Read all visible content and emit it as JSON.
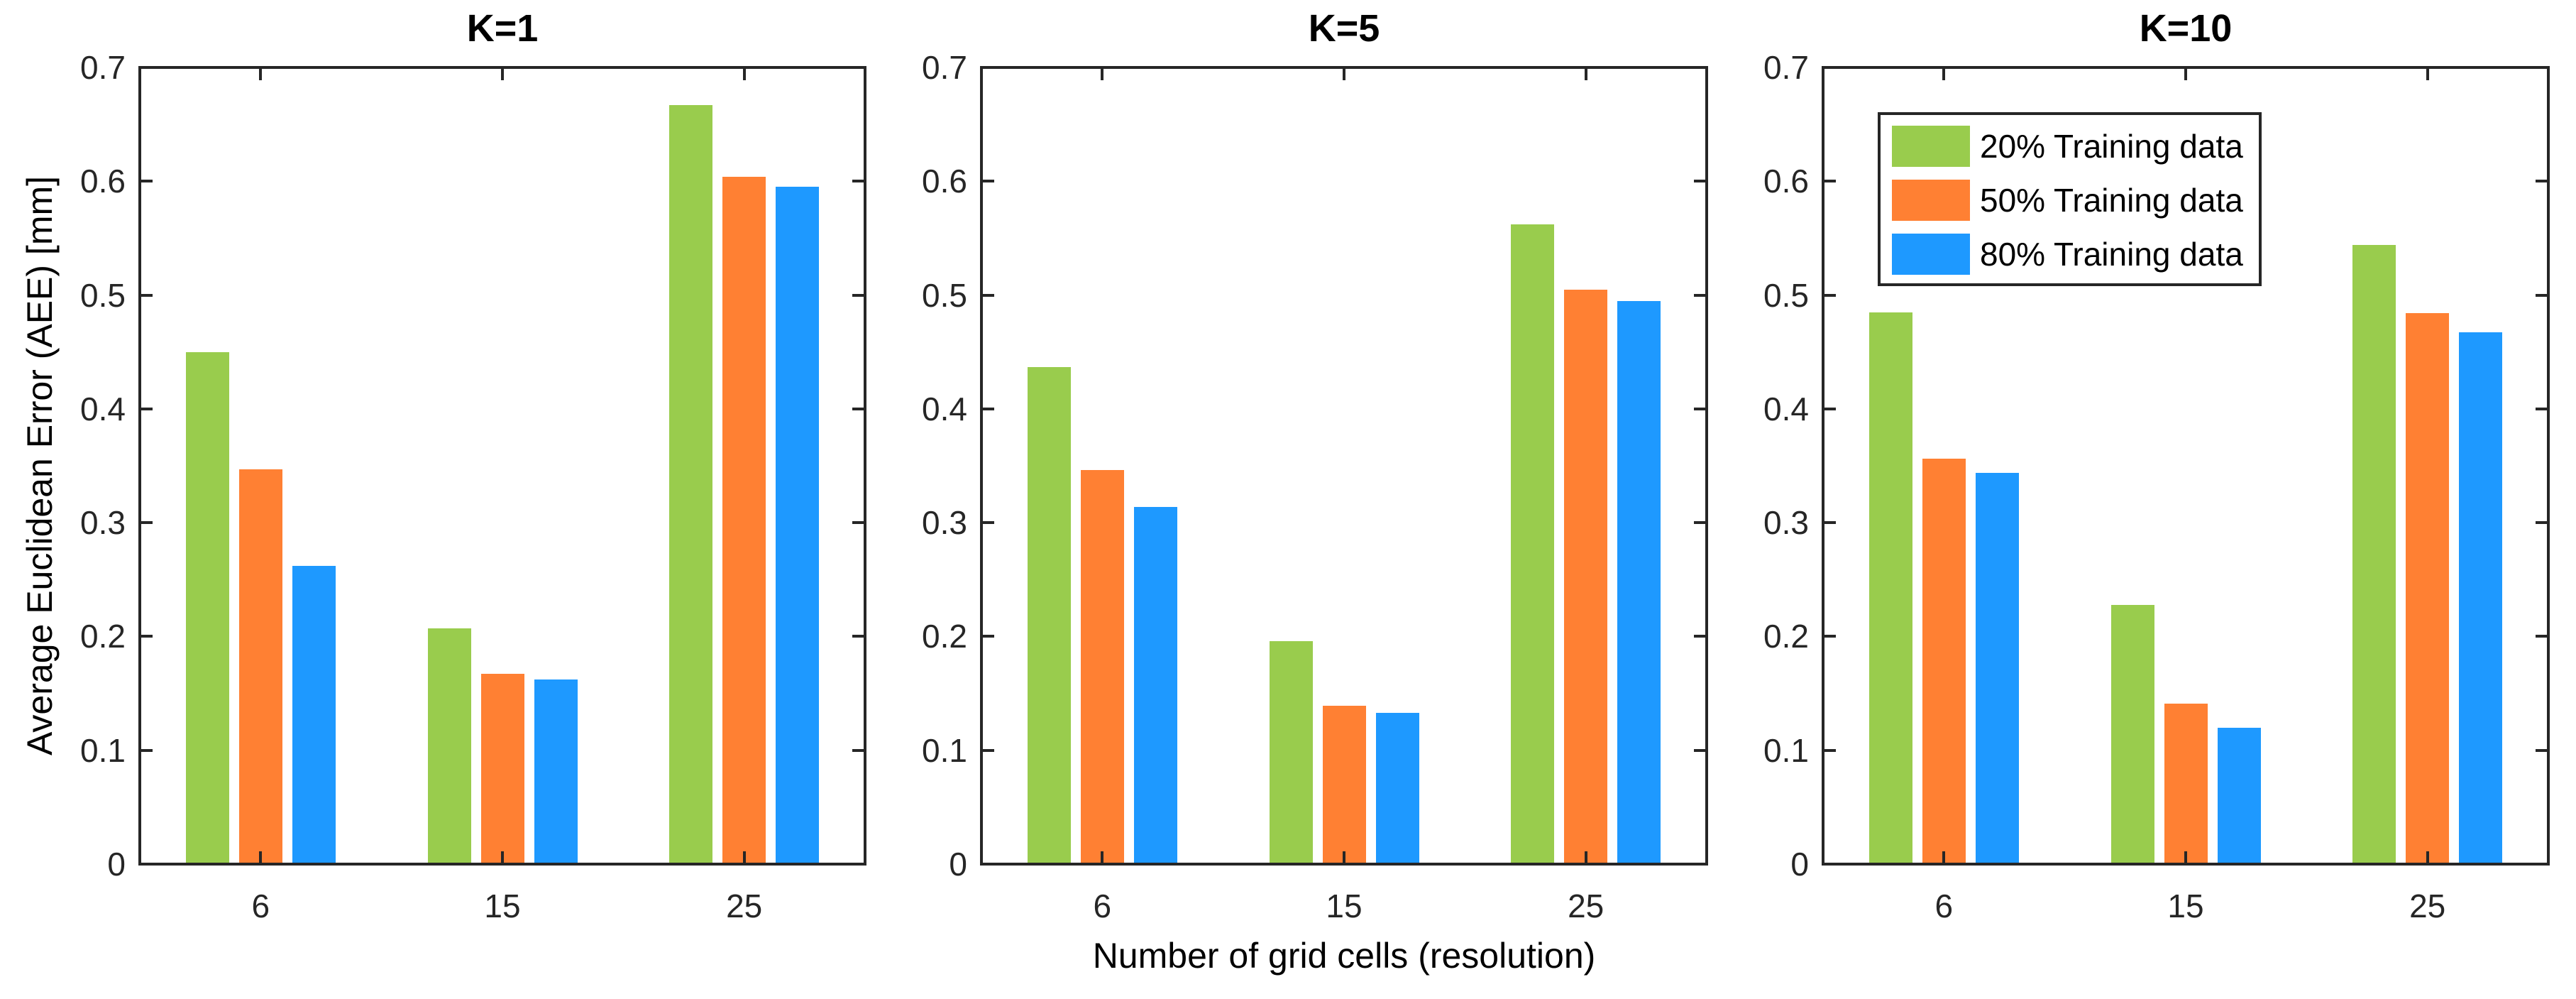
{
  "figure": {
    "background": "#FFFFFF",
    "axis_color": "#262626",
    "text_color": "#000000"
  },
  "chart_data": {
    "type": "bar",
    "layout": "three horizontal subplots sharing y-range, legend in upper-left of third subplot, no grid",
    "categories": [
      "6",
      "15",
      "25"
    ],
    "xlabel": "Number of grid cells (resolution)",
    "ylabel": "Average Euclidean Error (AEE) [mm]",
    "ylim": [
      0,
      0.7
    ],
    "ytick_labels": [
      "0",
      "0.1",
      "0.2",
      "0.3",
      "0.4",
      "0.5",
      "0.6",
      "0.7"
    ],
    "grid": false,
    "subplots": [
      {
        "title": "K=1",
        "series": [
          {
            "name": "20% Training data",
            "color": "#99CC4D",
            "values": [
              0.45,
              0.207,
              0.667
            ]
          },
          {
            "name": "50% Training data",
            "color": "#FF8033",
            "values": [
              0.347,
              0.167,
              0.604
            ]
          },
          {
            "name": "80% Training data",
            "color": "#1E99FF",
            "values": [
              0.262,
              0.162,
              0.595
            ]
          }
        ]
      },
      {
        "title": "K=5",
        "series": [
          {
            "name": "20% Training data",
            "color": "#99CC4D",
            "values": [
              0.437,
              0.196,
              0.562
            ]
          },
          {
            "name": "50% Training data",
            "color": "#FF8033",
            "values": [
              0.346,
              0.139,
              0.505
            ]
          },
          {
            "name": "80% Training data",
            "color": "#1E99FF",
            "values": [
              0.314,
              0.133,
              0.495
            ]
          }
        ]
      },
      {
        "title": "K=10",
        "series": [
          {
            "name": "20% Training data",
            "color": "#99CC4D",
            "values": [
              0.485,
              0.228,
              0.544
            ]
          },
          {
            "name": "50% Training data",
            "color": "#FF8033",
            "values": [
              0.356,
              0.141,
              0.484
            ]
          },
          {
            "name": "80% Training data",
            "color": "#1E99FF",
            "values": [
              0.344,
              0.12,
              0.467
            ]
          }
        ]
      }
    ],
    "legend": {
      "location": "upper-left area of K=10 subplot",
      "entries": [
        {
          "label": "20% Training data",
          "color": "#99CC4D"
        },
        {
          "label": "50% Training data",
          "color": "#FF8033"
        },
        {
          "label": "80% Training data",
          "color": "#1E99FF"
        }
      ]
    }
  }
}
